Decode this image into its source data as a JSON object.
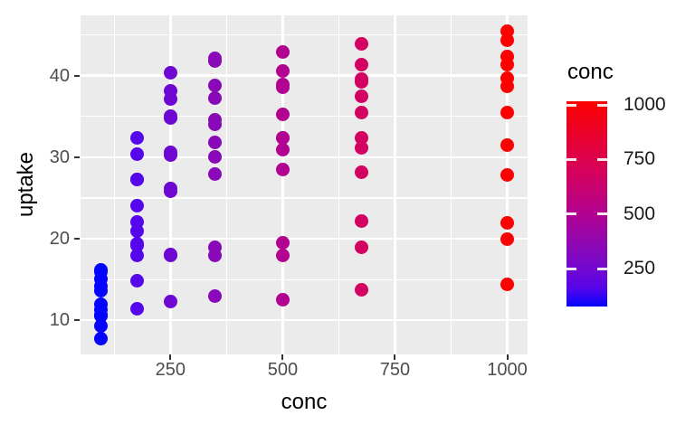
{
  "figure": {
    "background": "#FFFFFF",
    "panel_background": "#EBEBEB",
    "gridline_color": "#FFFFFF",
    "tick_mark_color": "#333333",
    "tick_label_color": "#4D4D4D",
    "axis_title_color": "#000000"
  },
  "chart_data": {
    "type": "scatter",
    "title": "",
    "xlabel": "conc",
    "ylabel": "uptake",
    "x_ticks": [
      250,
      500,
      750,
      1000
    ],
    "x_minor_ticks": [
      125,
      375,
      625,
      875
    ],
    "y_ticks": [
      10,
      20,
      30,
      40
    ],
    "y_minor_ticks": [
      15,
      25,
      35,
      45
    ],
    "xlim": [
      49.75,
      1045.25
    ],
    "ylim": [
      5.81,
      47.39
    ],
    "grid": true,
    "series": [
      {
        "conc": 95,
        "color": "#0403FE",
        "uptake": [
          16.0,
          13.6,
          16.2,
          14.2,
          9.3,
          15.1,
          10.6,
          12.0,
          11.3,
          10.5,
          7.7,
          10.6
        ]
      },
      {
        "conc": 175,
        "color": "#5606EA",
        "uptake": [
          30.4,
          27.3,
          32.4,
          24.1,
          27.3,
          21.0,
          19.2,
          22.0,
          19.4,
          14.9,
          11.4,
          18.0
        ]
      },
      {
        "conc": 250,
        "color": "#6F07D3",
        "uptake": [
          34.8,
          37.1,
          40.3,
          30.3,
          35.0,
          38.1,
          26.2,
          30.6,
          25.8,
          18.1,
          12.3,
          17.9
        ]
      },
      {
        "conc": 350,
        "color": "#8908B8",
        "uptake": [
          37.2,
          41.8,
          42.1,
          34.6,
          38.8,
          34.0,
          30.0,
          31.8,
          27.9,
          18.9,
          13.0,
          17.9
        ]
      },
      {
        "conc": 500,
        "color": "#B20291",
        "uptake": [
          35.3,
          40.6,
          42.9,
          32.4,
          38.6,
          38.9,
          30.9,
          32.4,
          28.5,
          19.5,
          12.5,
          17.9
        ]
      },
      {
        "conc": 675,
        "color": "#D30160",
        "uptake": [
          39.2,
          41.4,
          43.9,
          35.5,
          37.5,
          39.6,
          32.4,
          31.1,
          28.1,
          22.2,
          13.7,
          18.9
        ]
      },
      {
        "conc": 1000,
        "color": "#FB0100",
        "uptake": [
          39.7,
          44.3,
          45.5,
          38.7,
          42.4,
          41.4,
          35.5,
          31.5,
          27.8,
          21.9,
          14.4,
          19.9
        ]
      }
    ],
    "legend": {
      "title": "conc",
      "position": "right",
      "ticks": [
        1000,
        750,
        500,
        250
      ],
      "bar_value_range": [
        95,
        1000
      ],
      "low_color": "#0000FF",
      "high_color": "#FF0000",
      "gradient_stops": [
        {
          "value": 95,
          "color": "#0403FE"
        },
        {
          "value": 175,
          "color": "#5606EA"
        },
        {
          "value": 250,
          "color": "#6F07D3"
        },
        {
          "value": 350,
          "color": "#8908B8"
        },
        {
          "value": 500,
          "color": "#B20291"
        },
        {
          "value": 675,
          "color": "#D30160"
        },
        {
          "value": 1000,
          "color": "#FB0100"
        }
      ]
    }
  }
}
